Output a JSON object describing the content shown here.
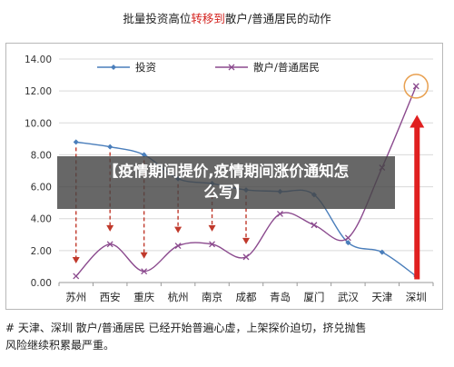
{
  "header": {
    "title_part1": "批量投资高位",
    "title_highlight": "转移到",
    "title_part2": "散户/普通居民的动作"
  },
  "overlay": {
    "line1": "【疫情期间提价,疫情期间涨价通知怎",
    "line2": "么写】"
  },
  "footnote": {
    "line1": "# 天津、深圳 散户/普通居民 已经开始普遍心虚，上架探价迫切，挤兑抛售",
    "line2": "风险继续积累最严重。"
  },
  "chart_data": {
    "type": "line",
    "categories": [
      "苏州",
      "西安",
      "重庆",
      "杭州",
      "南京",
      "成都",
      "青岛",
      "厦门",
      "武汉",
      "天津",
      "深圳"
    ],
    "ylim": [
      0,
      14
    ],
    "yticks": [
      "0.00",
      "2.00",
      "4.00",
      "6.00",
      "8.00",
      "10.00",
      "12.00",
      "14.00"
    ],
    "grid": true,
    "legend_position": "top",
    "series": [
      {
        "name": "投资",
        "color": "#4a7ebb",
        "marker": "diamond",
        "values": [
          8.8,
          8.5,
          8.0,
          6.5,
          6.2,
          5.8,
          5.7,
          5.5,
          2.5,
          1.9,
          0.4
        ]
      },
      {
        "name": "散户/普通居民",
        "color": "#8b4a8e",
        "marker": "x",
        "values": [
          0.4,
          2.4,
          0.7,
          2.3,
          2.4,
          1.6,
          4.3,
          3.6,
          2.8,
          7.2,
          12.3
        ]
      }
    ],
    "arrow_color": "#c0392b",
    "highlight_circle_color": "#e8a050"
  }
}
